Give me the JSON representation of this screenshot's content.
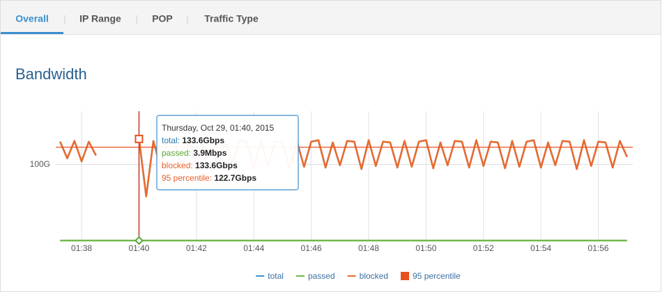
{
  "tabs": [
    "Overall",
    "IP Range",
    "POP",
    "Traffic Type"
  ],
  "heading": "Bandwidth",
  "chart_data": {
    "type": "line",
    "x": [
      97.25,
      97.5,
      97.75,
      98.0,
      98.25,
      98.5,
      98.75,
      99.0,
      99.25,
      99.5,
      99.75,
      100.0,
      100.25,
      100.5,
      100.75,
      101.0,
      101.25,
      101.5,
      101.75,
      102.0,
      102.25,
      102.5,
      102.75,
      103.0,
      103.25,
      103.5,
      103.75,
      104.0,
      104.25,
      104.5,
      104.75,
      105.0,
      105.25,
      105.5,
      105.75,
      106.0,
      106.25,
      106.5,
      106.75,
      107.0,
      107.25,
      107.5,
      107.75,
      108.0,
      108.25,
      108.5,
      108.75,
      109.0,
      109.25,
      109.5,
      109.75,
      110.0,
      110.25,
      110.5,
      110.75,
      111.0,
      111.25,
      111.5,
      111.75,
      112.0,
      112.25,
      112.5,
      112.75,
      113.0,
      113.25,
      113.5,
      113.75,
      114.0,
      114.25,
      114.5,
      114.75,
      115.0,
      115.25,
      115.5,
      115.75,
      116.0,
      116.25,
      116.5,
      116.75,
      117.0
    ],
    "xlim": [
      97.1,
      117.2
    ],
    "xticks": [
      {
        "value": 98,
        "label": "01:38"
      },
      {
        "value": 100,
        "label": "01:40"
      },
      {
        "value": 102,
        "label": "01:42"
      },
      {
        "value": 104,
        "label": "01:44"
      },
      {
        "value": 106,
        "label": "01:46"
      },
      {
        "value": 108,
        "label": "01:48"
      },
      {
        "value": 110,
        "label": "01:50"
      },
      {
        "value": 112,
        "label": "01:52"
      },
      {
        "value": 114,
        "label": "01:54"
      },
      {
        "value": 116,
        "label": "01:56"
      }
    ],
    "ylim": [
      0,
      170
    ],
    "yticks": [
      {
        "value": 100,
        "label": "100G"
      }
    ],
    "grid": true,
    "legend": "bottom",
    "series": [
      {
        "name": "total",
        "color": "#3a8fd0",
        "values": [
          130,
          108,
          131,
          104,
          130,
          112,
          null,
          null,
          null,
          null,
          null,
          133.6,
          58,
          131,
          96,
          130,
          128,
          97,
          131,
          99,
          130,
          132,
          95,
          129,
          100,
          131,
          130,
          96,
          132,
          98,
          130,
          129,
          95,
          131,
          97,
          130,
          132,
          96,
          129,
          99,
          131,
          130,
          94,
          132,
          98,
          130,
          129,
          96,
          131,
          97,
          130,
          132,
          95,
          129,
          99,
          131,
          130,
          96,
          132,
          98,
          130,
          129,
          95,
          131,
          97,
          130,
          132,
          96,
          129,
          99,
          131,
          130,
          94,
          132,
          98,
          130,
          129,
          96,
          131,
          110
        ]
      },
      {
        "name": "passed",
        "color": "#6dbb4a",
        "values": [
          0.0039,
          0.0039,
          0.0039,
          0.0039,
          0.0039,
          0.0039,
          0.0039,
          0.0039,
          0.0039,
          0.0039,
          0.0039,
          0.0039,
          0.0039,
          0.0039,
          0.0039,
          0.0039,
          0.0039,
          0.0039,
          0.0039,
          0.0039,
          0.0039,
          0.0039,
          0.0039,
          0.0039,
          0.0039,
          0.0039,
          0.0039,
          0.0039,
          0.0039,
          0.0039,
          0.0039,
          0.0039,
          0.0039,
          0.0039,
          0.0039,
          0.0039,
          0.0039,
          0.0039,
          0.0039,
          0.0039,
          0.0039,
          0.0039,
          0.0039,
          0.0039,
          0.0039,
          0.0039,
          0.0039,
          0.0039,
          0.0039,
          0.0039,
          0.0039,
          0.0039,
          0.0039,
          0.0039,
          0.0039,
          0.0039,
          0.0039,
          0.0039,
          0.0039,
          0.0039,
          0.0039,
          0.0039,
          0.0039,
          0.0039,
          0.0039,
          0.0039,
          0.0039,
          0.0039,
          0.0039,
          0.0039,
          0.0039,
          0.0039,
          0.0039,
          0.0039,
          0.0039,
          0.0039,
          0.0039,
          0.0039,
          0.0039,
          0.0039
        ]
      },
      {
        "name": "blocked",
        "color": "#ec6a2c",
        "values": [
          130,
          108,
          131,
          104,
          130,
          112,
          null,
          null,
          null,
          null,
          null,
          133.6,
          58,
          131,
          96,
          130,
          128,
          97,
          131,
          99,
          130,
          132,
          95,
          129,
          100,
          131,
          130,
          96,
          132,
          98,
          130,
          129,
          95,
          131,
          97,
          130,
          132,
          96,
          129,
          99,
          131,
          130,
          94,
          132,
          98,
          130,
          129,
          96,
          131,
          97,
          130,
          132,
          95,
          129,
          99,
          131,
          130,
          96,
          132,
          98,
          130,
          129,
          95,
          131,
          97,
          130,
          132,
          96,
          129,
          99,
          131,
          130,
          94,
          132,
          98,
          130,
          129,
          96,
          131,
          110
        ]
      },
      {
        "name": "95 percentile",
        "color": "#e8501e",
        "value": 122.7
      }
    ]
  },
  "tooltip": {
    "title": "Thursday, Oct 29, 01:40, 2015",
    "rows": [
      {
        "label": "total:",
        "value": "133.6Gbps",
        "color": "#2a7ab0"
      },
      {
        "label": "passed:",
        "value": "3.9Mbps",
        "color": "#5aa83a"
      },
      {
        "label": "blocked:",
        "value": "133.6Gbps",
        "color": "#e8602a"
      },
      {
        "label": "95 percentile:",
        "value": "122.7Gbps",
        "color": "#e8602a"
      }
    ]
  }
}
